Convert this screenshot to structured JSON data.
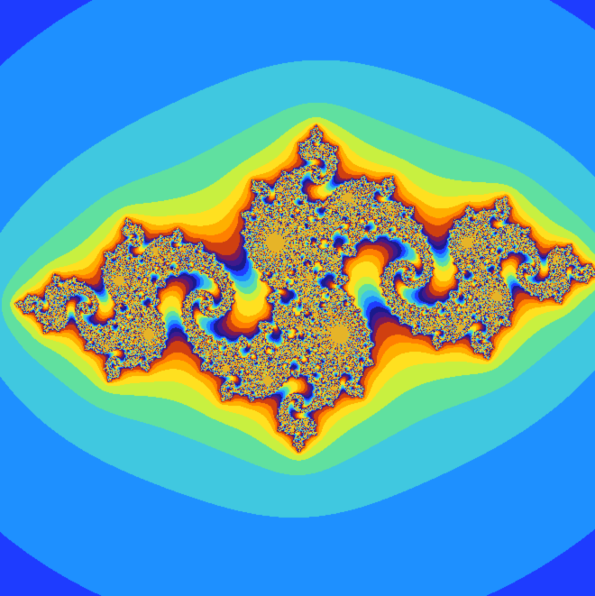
{
  "image": {
    "subject": "julia-set-fractal",
    "palette": [
      "#1a1a8c",
      "#1e3cff",
      "#1e90ff",
      "#40c8e0",
      "#60e0a0",
      "#c8f040",
      "#ffe020",
      "#ffb000",
      "#ff8000",
      "#d04010",
      "#801a50",
      "#401a8c"
    ],
    "background_color": "#1a1a5e"
  }
}
